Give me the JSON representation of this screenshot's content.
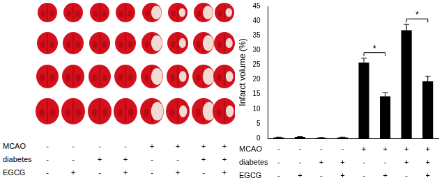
{
  "chart_data": {
    "type": "bar",
    "categories": [
      null,
      null,
      null,
      null,
      null,
      null,
      null,
      null
    ],
    "values": [
      0.3,
      0.5,
      0.2,
      0.3,
      25.8,
      14.3,
      36.8,
      19.4
    ],
    "errors": [
      0.1,
      0.1,
      0.1,
      0.1,
      1.5,
      1.2,
      2.0,
      1.8
    ],
    "color": "#000000",
    "ylabel": "Infarct volume (%)",
    "ylim": [
      0,
      45
    ],
    "yticks": [
      0,
      5,
      10,
      15,
      20,
      25,
      30,
      35,
      40,
      45
    ],
    "grid": false,
    "tick_labels": "y",
    "annotations": [
      {
        "text": "*",
        "between": [
          4,
          5
        ]
      },
      {
        "text": "*",
        "between": [
          6,
          7
        ]
      }
    ]
  },
  "conditions": [
    {
      "label": "MCAO",
      "values": [
        "-",
        "-",
        "-",
        "-",
        "+",
        "+",
        "+",
        "+"
      ]
    },
    {
      "label": "diabetes",
      "values": [
        "-",
        "-",
        "+",
        "+",
        "-",
        "-",
        "+",
        "+"
      ]
    },
    {
      "label": "EGCG",
      "values": [
        "-",
        "+",
        "-",
        "+",
        "-",
        "+",
        "-",
        "+"
      ]
    }
  ]
}
